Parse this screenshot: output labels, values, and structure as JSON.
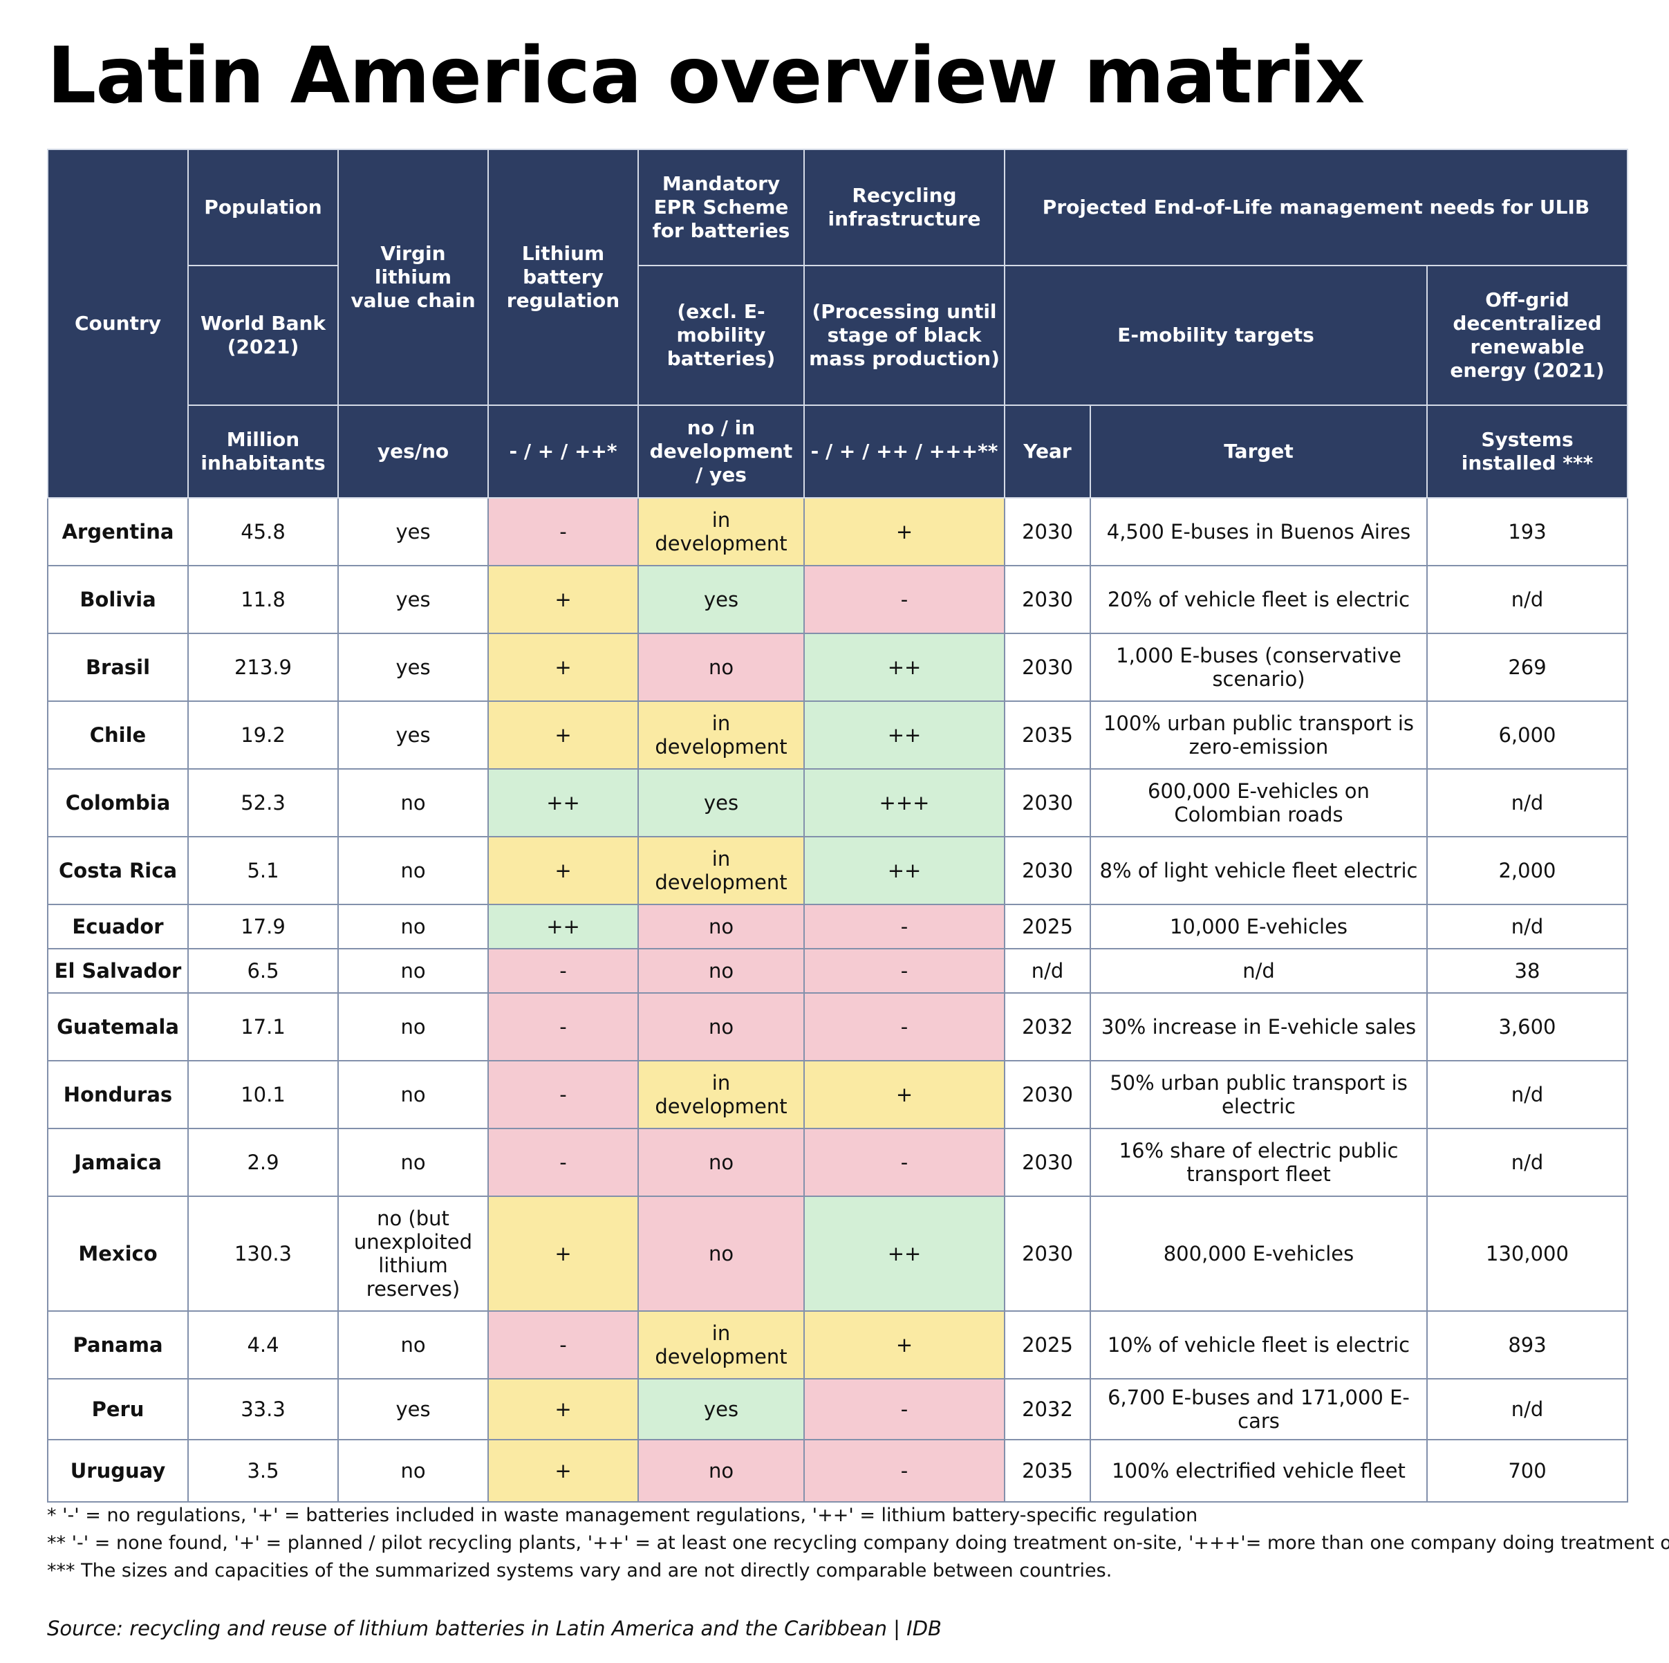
{
  "title": "Latin America overview matrix",
  "headers": {
    "country": "Country",
    "population": {
      "top": "Population",
      "mid": "World Bank (2021)",
      "unit": "Million inhabitants"
    },
    "virgin": {
      "top": "Virgin lithium value chain",
      "unit": "yes/no"
    },
    "regulation": {
      "top": "Lithium battery regulation",
      "unit": "- / + / ++*"
    },
    "epr": {
      "top": "Mandatory EPR Scheme for batteries",
      "mid": "(excl. E-mobility batteries)",
      "unit": "no / in development / yes"
    },
    "recycling": {
      "top": "Recycling infrastructure",
      "mid": "(Processing until stage of black mass production)",
      "unit": "- / + / ++ / +++**"
    },
    "projected": "Projected End-of-Life management needs for ULIB",
    "emobility": "E-mobility targets",
    "year": "Year",
    "target": "Target",
    "offgrid": {
      "mid": "Off-grid decentralized renewable energy (2021)",
      "unit": "Systems installed ***"
    }
  },
  "rows": [
    {
      "country": "Argentina",
      "population": "45.8",
      "virgin": "yes",
      "regulation": "-",
      "regulation_color": "red",
      "epr": "in development",
      "epr_color": "yellow",
      "recycling": "+",
      "recycling_color": "yellow",
      "year": "2030",
      "target": "4,500 E-buses in Buenos Aires",
      "systems": "193",
      "height": 98
    },
    {
      "country": "Bolivia",
      "population": "11.8",
      "virgin": "yes",
      "regulation": "+",
      "regulation_color": "yellow",
      "epr": "yes",
      "epr_color": "green",
      "recycling": "-",
      "recycling_color": "red",
      "year": "2030",
      "target": "20% of vehicle fleet is electric",
      "systems": "n/d",
      "height": 98
    },
    {
      "country": "Brasil",
      "population": "213.9",
      "virgin": "yes",
      "regulation": "+",
      "regulation_color": "yellow",
      "epr": "no",
      "epr_color": "red",
      "recycling": "++",
      "recycling_color": "green",
      "year": "2030",
      "target": "1,000 E-buses (conservative scenario)",
      "systems": "269",
      "height": 98
    },
    {
      "country": "Chile",
      "population": "19.2",
      "virgin": "yes",
      "regulation": "+",
      "regulation_color": "yellow",
      "epr": "in development",
      "epr_color": "yellow",
      "recycling": "++",
      "recycling_color": "green",
      "year": "2035",
      "target": "100% urban public transport is zero-emission",
      "systems": "6,000",
      "height": 98
    },
    {
      "country": "Colombia",
      "population": "52.3",
      "virgin": "no",
      "regulation": "++",
      "regulation_color": "green",
      "epr": "yes",
      "epr_color": "green",
      "recycling": "+++",
      "recycling_color": "green",
      "year": "2030",
      "target": "600,000 E-vehicles on Colombian roads",
      "systems": "n/d",
      "height": 98
    },
    {
      "country": "Costa Rica",
      "population": "5.1",
      "virgin": "no",
      "regulation": "+",
      "regulation_color": "yellow",
      "epr": "in development",
      "epr_color": "yellow",
      "recycling": "++",
      "recycling_color": "green",
      "year": "2030",
      "target": "8% of light vehicle fleet electric",
      "systems": "2,000",
      "height": 98
    },
    {
      "country": "Ecuador",
      "population": "17.9",
      "virgin": "no",
      "regulation": "++",
      "regulation_color": "green",
      "epr": "no",
      "epr_color": "red",
      "recycling": "-",
      "recycling_color": "red",
      "year": "2025",
      "target": "10,000 E-vehicles",
      "systems": "n/d",
      "height": 64
    },
    {
      "country": "El Salvador",
      "population": "6.5",
      "virgin": "no",
      "regulation": "-",
      "regulation_color": "red",
      "epr": "no",
      "epr_color": "red",
      "recycling": "-",
      "recycling_color": "red",
      "year": "n/d",
      "target": "n/d",
      "systems": "38",
      "height": 64
    },
    {
      "country": "Guatemala",
      "population": "17.1",
      "virgin": "no",
      "regulation": "-",
      "regulation_color": "red",
      "epr": "no",
      "epr_color": "red",
      "recycling": "-",
      "recycling_color": "red",
      "year": "2032",
      "target": "30% increase in E-vehicle sales",
      "systems": "3,600",
      "height": 98
    },
    {
      "country": "Honduras",
      "population": "10.1",
      "virgin": "no",
      "regulation": "-",
      "regulation_color": "red",
      "epr": "in development",
      "epr_color": "yellow",
      "recycling": "+",
      "recycling_color": "yellow",
      "year": "2030",
      "target": "50% urban public transport is electric",
      "systems": "n/d",
      "height": 98
    },
    {
      "country": "Jamaica",
      "population": "2.9",
      "virgin": "no",
      "regulation": "-",
      "regulation_color": "red",
      "epr": "no",
      "epr_color": "red",
      "recycling": "-",
      "recycling_color": "red",
      "year": "2030",
      "target": "16% share of electric public transport fleet",
      "systems": "n/d",
      "height": 98
    },
    {
      "country": "Mexico",
      "population": "130.3",
      "virgin": "no (but unexploited lithium reserves)",
      "regulation": "+",
      "regulation_color": "yellow",
      "epr": "no",
      "epr_color": "red",
      "recycling": "++",
      "recycling_color": "green",
      "year": "2030",
      "target": "800,000 E-vehicles",
      "systems": "130,000",
      "height": 166
    },
    {
      "country": "Panama",
      "population": "4.4",
      "virgin": "no",
      "regulation": "-",
      "regulation_color": "red",
      "epr": "in development",
      "epr_color": "yellow",
      "recycling": "+",
      "recycling_color": "yellow",
      "year": "2025",
      "target": "10% of vehicle fleet is electric",
      "systems": "893",
      "height": 98
    },
    {
      "country": "Peru",
      "population": "33.3",
      "virgin": "yes",
      "regulation": "+",
      "regulation_color": "yellow",
      "epr": "yes",
      "epr_color": "green",
      "recycling": "-",
      "recycling_color": "red",
      "year": "2032",
      "target": "6,700 E-buses and 171,000 E-cars",
      "systems": "n/d",
      "height": 88
    },
    {
      "country": "Uruguay",
      "population": "3.5",
      "virgin": "no",
      "regulation": "+",
      "regulation_color": "yellow",
      "epr": "no",
      "epr_color": "red",
      "recycling": "-",
      "recycling_color": "red",
      "year": "2035",
      "target": "100% electrified vehicle fleet",
      "systems": "700",
      "height": 90
    }
  ],
  "footnotes": [
    "* '-' = no regulations, '+' = batteries included in waste management regulations, '++' = lithium battery-specific regulation",
    "** '-' = none found, '+' = planned / pilot recycling plants, '++' = at least one recycling company doing treatment on-site, '+++'= more than one company doing treatment on-site",
    "*** The sizes and capacities of the summarized systems vary and are not directly comparable between countries."
  ],
  "source": "Source: recycling and reuse of lithium batteries in Latin America and the Caribbean | IDB",
  "colors": {
    "header_bg": "#2d3d62",
    "red_bg": "#f5cbd2",
    "yellow_bg": "#faeaa3",
    "green_bg": "#d3efd6"
  }
}
